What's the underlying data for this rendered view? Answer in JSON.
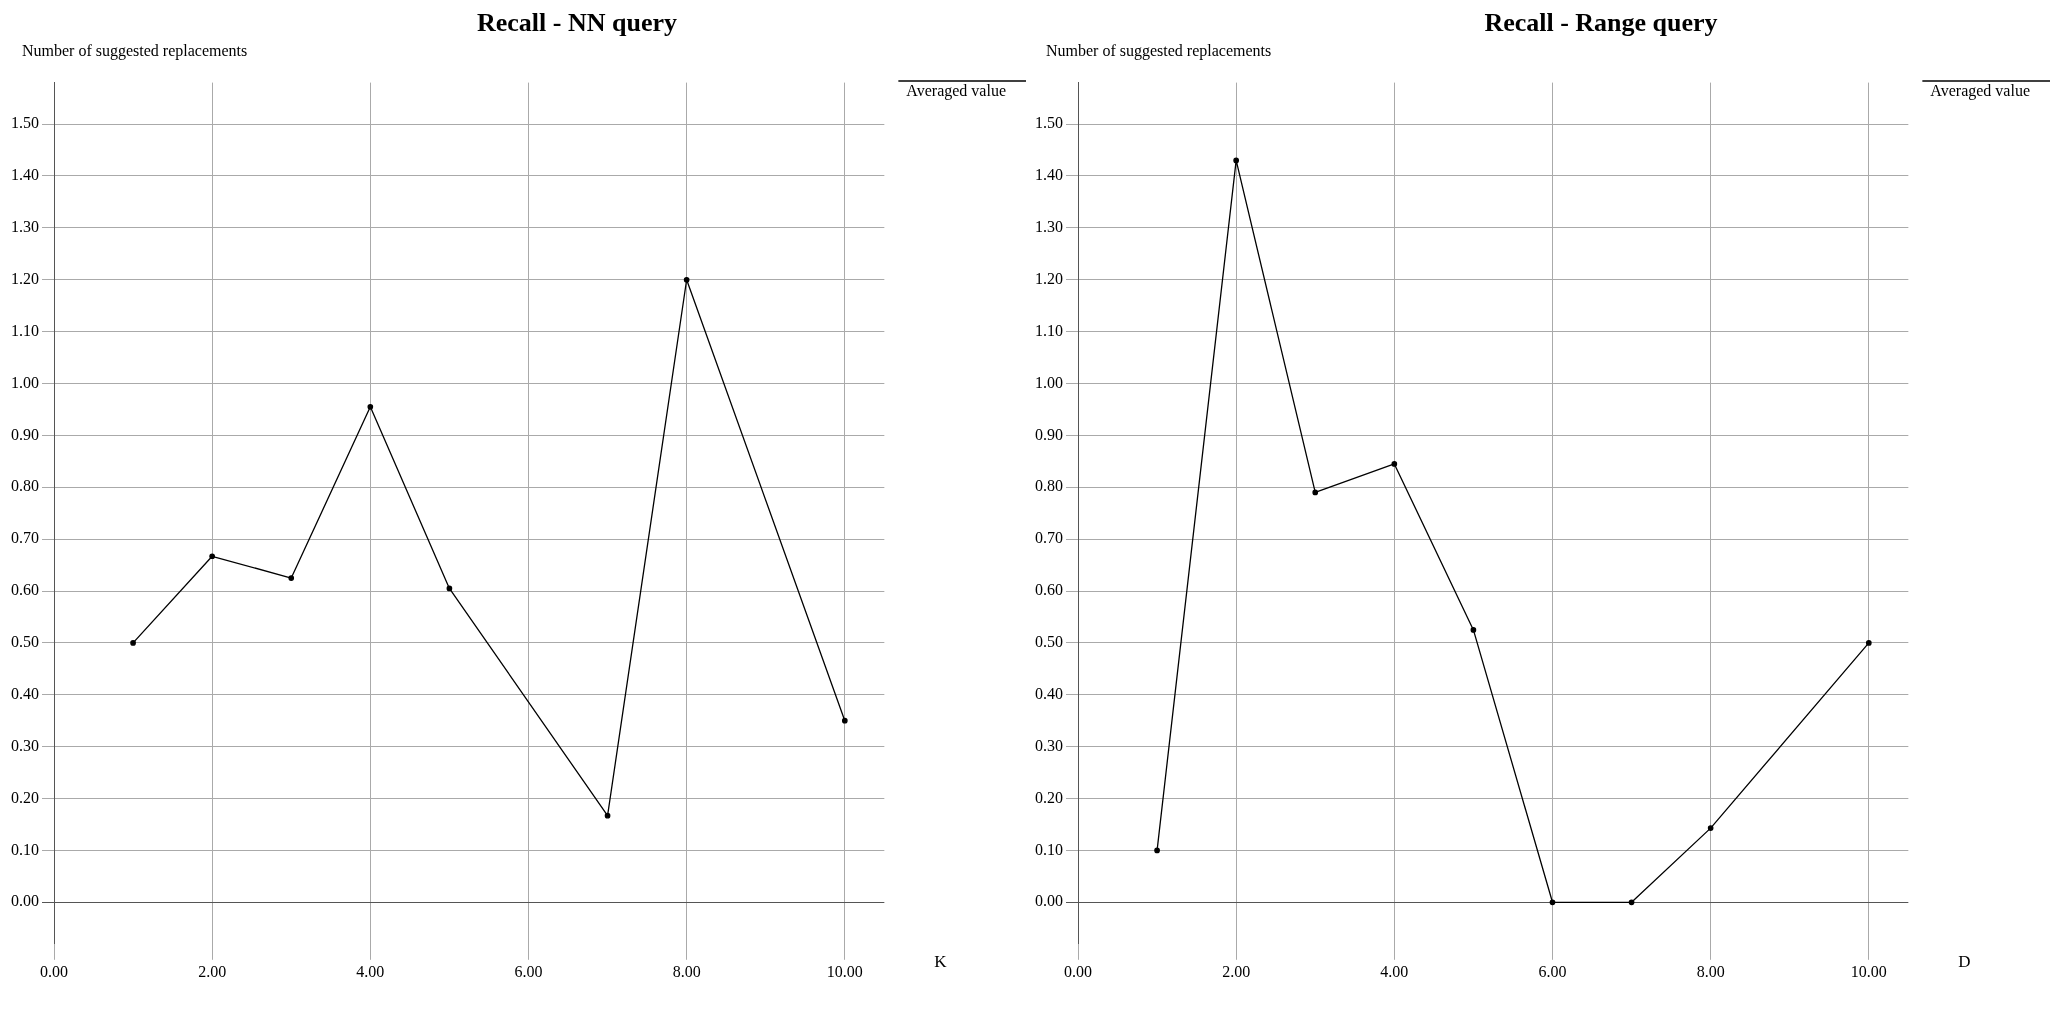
{
  "chart_data": [
    {
      "type": "line",
      "title": "Recall - NN query",
      "ylabel": "Number of suggested replacements",
      "xlabel": "K",
      "x": [
        1,
        2,
        3,
        4,
        5,
        7,
        8,
        10
      ],
      "series": [
        {
          "name": "Averaged value",
          "color": "#000000",
          "values": [
            0.5,
            0.667,
            0.625,
            0.955,
            0.605,
            0.167,
            1.2,
            0.35
          ]
        }
      ],
      "xlim": [
        0,
        10.5
      ],
      "xticks": [
        {
          "value": 0,
          "label": "0.00"
        },
        {
          "value": 2,
          "label": "2.00"
        },
        {
          "value": 4,
          "label": "4.00"
        },
        {
          "value": 6,
          "label": "6.00"
        },
        {
          "value": 8,
          "label": "8.00"
        },
        {
          "value": 10,
          "label": "10.00"
        }
      ],
      "ylim": [
        -0.08,
        1.58
      ],
      "yticks": [
        {
          "value": 0,
          "label": "0.00"
        },
        {
          "value": 0.1,
          "label": "0.10"
        },
        {
          "value": 0.2,
          "label": "0.20"
        },
        {
          "value": 0.3,
          "label": "0.30"
        },
        {
          "value": 0.4,
          "label": "0.40"
        },
        {
          "value": 0.5,
          "label": "0.50"
        },
        {
          "value": 0.6,
          "label": "0.60"
        },
        {
          "value": 0.7,
          "label": "0.70"
        },
        {
          "value": 0.8,
          "label": "0.80"
        },
        {
          "value": 0.9,
          "label": "0.90"
        },
        {
          "value": 1,
          "label": "1.00"
        },
        {
          "value": 1.1,
          "label": "1.10"
        },
        {
          "value": 1.2,
          "label": "1.20"
        },
        {
          "value": 1.3,
          "label": "1.30"
        },
        {
          "value": 1.4,
          "label": "1.40"
        },
        {
          "value": 1.5,
          "label": "1.50"
        }
      ],
      "grid": true,
      "legend": "top right",
      "marker": "circle",
      "line_style": "solid"
    },
    {
      "type": "line",
      "title": "Recall - Range query",
      "ylabel": "Number of suggested replacements",
      "xlabel": "D",
      "x": [
        1,
        2,
        3,
        4,
        5,
        6,
        7,
        8,
        10
      ],
      "series": [
        {
          "name": "Averaged value",
          "color": "#000000",
          "values": [
            0.1,
            1.43,
            0.79,
            0.845,
            0.525,
            0,
            0,
            0.143,
            0.5
          ]
        }
      ],
      "xlim": [
        0,
        10.5
      ],
      "xticks": [
        {
          "value": 0,
          "label": "0.00"
        },
        {
          "value": 2,
          "label": "2.00"
        },
        {
          "value": 4,
          "label": "4.00"
        },
        {
          "value": 6,
          "label": "6.00"
        },
        {
          "value": 8,
          "label": "8.00"
        },
        {
          "value": 10,
          "label": "10.00"
        }
      ],
      "ylim": [
        -0.08,
        1.58
      ],
      "yticks": [
        {
          "value": 0,
          "label": "0.00"
        },
        {
          "value": 0.1,
          "label": "0.10"
        },
        {
          "value": 0.2,
          "label": "0.20"
        },
        {
          "value": 0.3,
          "label": "0.30"
        },
        {
          "value": 0.4,
          "label": "0.40"
        },
        {
          "value": 0.5,
          "label": "0.50"
        },
        {
          "value": 0.6,
          "label": "0.60"
        },
        {
          "value": 0.7,
          "label": "0.70"
        },
        {
          "value": 0.8,
          "label": "0.80"
        },
        {
          "value": 0.9,
          "label": "0.90"
        },
        {
          "value": 1,
          "label": "1.00"
        },
        {
          "value": 1.1,
          "label": "1.10"
        },
        {
          "value": 1.2,
          "label": "1.20"
        },
        {
          "value": 1.3,
          "label": "1.30"
        },
        {
          "value": 1.4,
          "label": "1.40"
        },
        {
          "value": 1.5,
          "label": "1.50"
        }
      ],
      "grid": true,
      "legend": "top right",
      "marker": "circle",
      "line_style": "solid"
    }
  ]
}
